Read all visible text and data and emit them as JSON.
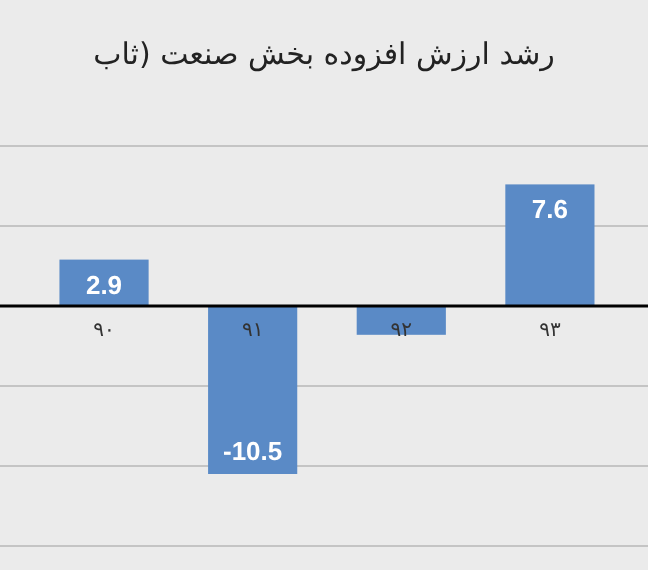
{
  "chart_data": {
    "type": "bar",
    "title": "رشد ارزش افزوده بخش صنعت (ثاب",
    "categories": [
      "۹۰",
      "۹۱",
      "۹۲",
      "۹۳"
    ],
    "values": [
      2.9,
      -10.5,
      -1.8,
      7.6
    ],
    "value_labels": [
      "2.9",
      "-10.5",
      null,
      "7.6"
    ],
    "color": "#5a8ac6",
    "tick_labels": "x",
    "grid": "y"
  }
}
